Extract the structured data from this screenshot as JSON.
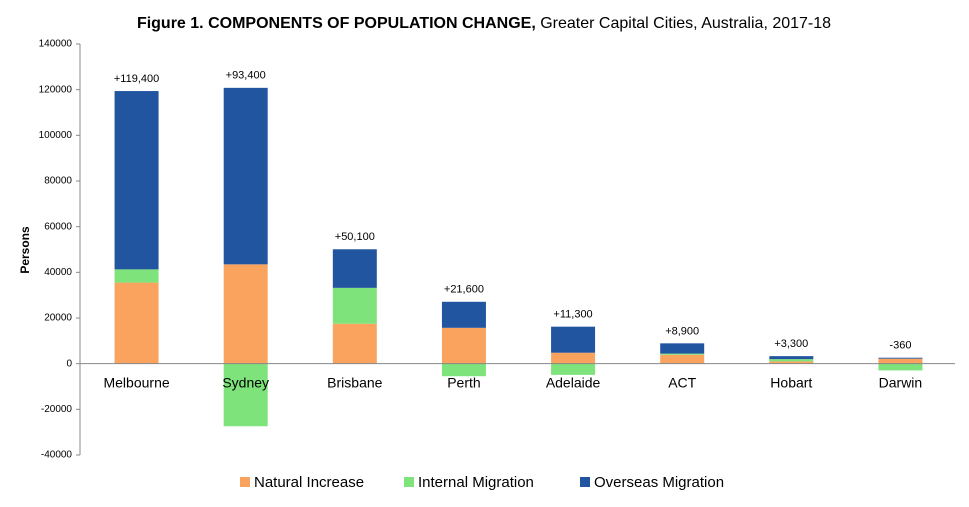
{
  "chart_data": {
    "type": "stacked_bar",
    "title": "Figure 1. COMPONENTS OF POPULATION CHANGE,",
    "subtitle": "Greater Capital Cities, Australia, 2017-18",
    "y_label": "Persons",
    "categories": [
      "Melbourne",
      "Sydney",
      "Brisbane",
      "Perth",
      "Adelaide",
      "ACT",
      "Hobart",
      "Darwin"
    ],
    "series": [
      {
        "name": "Natural Increase",
        "color": "#f9a35e",
        "values": [
          35500,
          43500,
          17500,
          15700,
          4800,
          3900,
          1000,
          2200
        ]
      },
      {
        "name": "Internal Migration",
        "color": "#7ee37a",
        "values": [
          5800,
          -27400,
          15700,
          -5500,
          -4900,
          500,
          1000,
          -2960
        ]
      },
      {
        "name": "Overseas Migration",
        "color": "#2255a0",
        "values": [
          78100,
          77300,
          16900,
          11400,
          11400,
          4500,
          1300,
          400
        ]
      }
    ],
    "total_labels": [
      "+119,400",
      "+93,400",
      "+50,100",
      "+21,600",
      "+11,300",
      "+8,900",
      "+3,300",
      "-360"
    ],
    "ylim": [
      -40000,
      140000
    ],
    "yticks": [
      -40000,
      -20000,
      0,
      20000,
      40000,
      60000,
      80000,
      100000,
      120000,
      140000
    ],
    "grid": false,
    "legend": "bottom"
  }
}
